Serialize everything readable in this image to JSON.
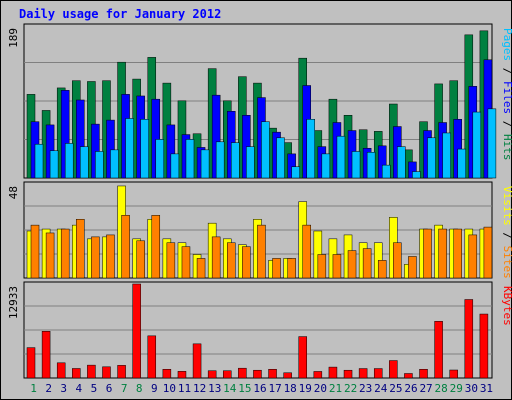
{
  "chart_data": [
    {
      "type": "bar",
      "title": "Daily usage for January 2012",
      "panel": "top",
      "ymax_label": "189",
      "right_label_parts": [
        {
          "text": "Pages",
          "color": "#00c0ff"
        },
        {
          "text": " / ",
          "color": "#000000"
        },
        {
          "text": "Files",
          "color": "#0000ff"
        },
        {
          "text": " / ",
          "color": "#000000"
        },
        {
          "text": "Hits",
          "color": "#008040"
        }
      ],
      "ylim": [
        0,
        189
      ],
      "grid": true,
      "categories": [
        "1",
        "2",
        "3",
        "4",
        "5",
        "6",
        "7",
        "8",
        "9",
        "10",
        "11",
        "12",
        "13",
        "14",
        "15",
        "16",
        "17",
        "18",
        "19",
        "20",
        "21",
        "22",
        "23",
        "24",
        "25",
        "26",
        "27",
        "28",
        "29",
        "30",
        "31"
      ],
      "weekend_days": [
        1,
        7,
        8,
        14,
        15,
        21,
        22,
        28,
        29
      ],
      "series": [
        {
          "color": "#008040",
          "values": [
            104,
            84,
            112,
            121,
            120,
            121,
            144,
            123,
            150,
            118,
            96,
            55,
            136,
            96,
            126,
            118,
            62,
            44,
            149,
            59,
            98,
            78,
            60,
            58,
            92,
            35,
            70,
            117,
            121,
            178,
            183
          ]
        },
        {
          "color": "#0000ff",
          "values": [
            70,
            66,
            109,
            97,
            67,
            72,
            104,
            102,
            98,
            66,
            54,
            38,
            103,
            83,
            78,
            100,
            57,
            30,
            115,
            39,
            69,
            59,
            37,
            40,
            64,
            20,
            59,
            69,
            73,
            114,
            147
          ]
        },
        {
          "color": "#00c0ff",
          "values": [
            42,
            34,
            43,
            39,
            33,
            35,
            74,
            73,
            48,
            30,
            48,
            35,
            45,
            44,
            39,
            70,
            50,
            14,
            73,
            30,
            52,
            33,
            32,
            16,
            39,
            8,
            50,
            56,
            36,
            82,
            86
          ]
        }
      ]
    },
    {
      "type": "bar",
      "panel": "middle",
      "ymax_label": "48",
      "right_label_parts": [
        {
          "text": "Visits",
          "color": "#ffff00"
        },
        {
          "text": " / ",
          "color": "#000000"
        },
        {
          "text": "Sites",
          "color": "#ff8000"
        }
      ],
      "ylim": [
        0,
        48
      ],
      "grid": true,
      "series": [
        {
          "color": "#ffff00",
          "values": [
            24,
            25,
            25,
            27,
            20,
            21,
            47,
            20,
            30,
            20,
            18,
            12,
            28,
            20,
            17,
            30,
            9,
            10,
            39,
            24,
            20,
            22,
            18,
            18,
            31,
            7,
            25,
            27,
            25,
            25,
            25
          ]
        },
        {
          "color": "#ff8000",
          "values": [
            27,
            23,
            25,
            30,
            21,
            22,
            32,
            19,
            32,
            18,
            16,
            10,
            21,
            18,
            16,
            27,
            10,
            10,
            27,
            12,
            12,
            14,
            15,
            9,
            18,
            11,
            25,
            25,
            25,
            22,
            26
          ]
        }
      ]
    },
    {
      "type": "bar",
      "panel": "bottom",
      "ymax_label": "12933",
      "right_label_parts": [
        {
          "text": "KBytes",
          "color": "#ff0000"
        }
      ],
      "ylim": [
        0,
        12933
      ],
      "grid": true,
      "series": [
        {
          "color": "#ff0000",
          "values": [
            4180,
            6430,
            2090,
            1310,
            1770,
            1540,
            1740,
            12933,
            5800,
            1200,
            920,
            4700,
            1000,
            1000,
            1350,
            1070,
            1200,
            720,
            5700,
            900,
            1500,
            1070,
            1300,
            1300,
            2400,
            620,
            1200,
            7800,
            1100,
            10800,
            8800
          ]
        }
      ]
    }
  ]
}
